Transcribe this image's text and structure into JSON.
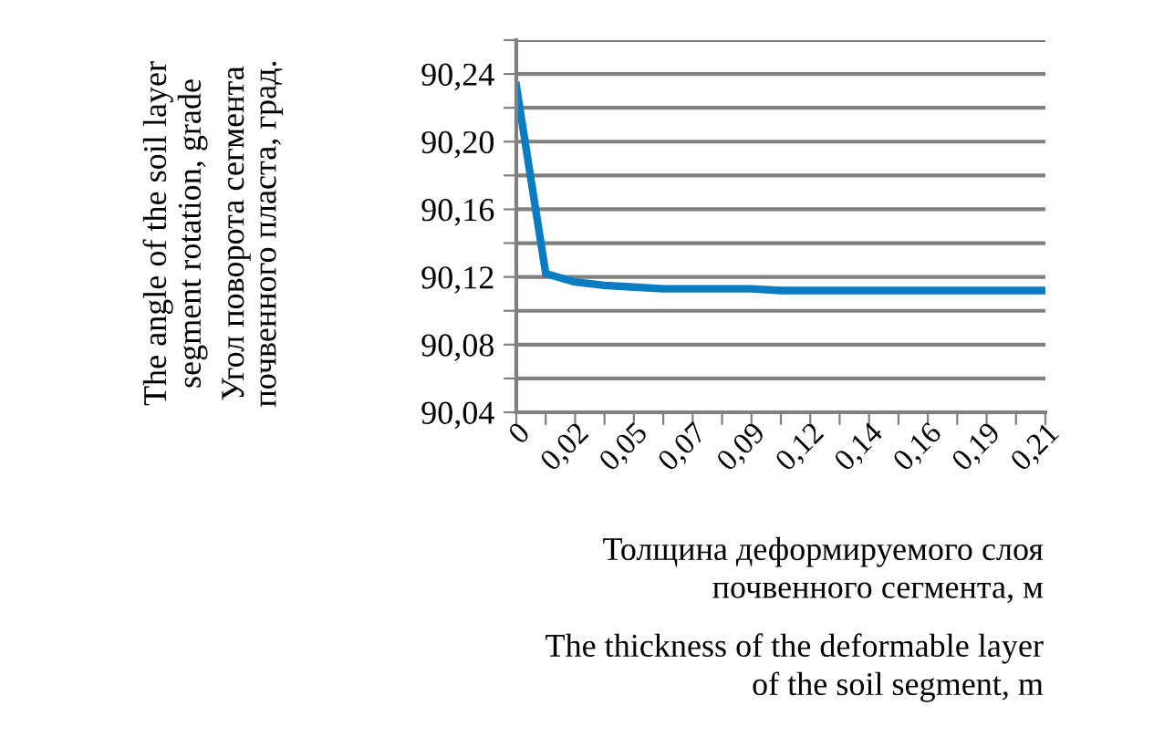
{
  "chart_data": {
    "type": "line",
    "ylabel": "Угол поворота сегмента\nпочвенного пласта, град.",
    "xlabel": "Толщина деформируемого слоя\nпочвенного сегмента, м",
    "annotations": [
      "The angle of the soil layer\nsegment rotation, grade",
      "The thickness of the deformable layer\nof the soil segment, m"
    ],
    "categories": [
      "0",
      null,
      "0,02",
      null,
      "0,05",
      null,
      "0,07",
      null,
      "0,09",
      null,
      "0,12",
      null,
      "0,14",
      null,
      "0,16",
      null,
      "0,19",
      null,
      "0,21"
    ],
    "series": [
      {
        "color": "#0a7cc1",
        "values": [
          90.233,
          90.122,
          90.117,
          90.115,
          90.114,
          90.113,
          90.113,
          90.113,
          90.113,
          90.112,
          90.112,
          90.112,
          90.112,
          90.112,
          90.112,
          90.112,
          90.112,
          90.112,
          90.112
        ]
      }
    ],
    "ylim": [
      90.04,
      90.26
    ],
    "yticks": [
      {
        "value": 90.04,
        "label": "90,04"
      },
      {
        "value": 90.06,
        "label": null
      },
      {
        "value": 90.08,
        "label": "90,08"
      },
      {
        "value": 90.1,
        "label": null
      },
      {
        "value": 90.12,
        "label": "90,12"
      },
      {
        "value": 90.14,
        "label": null
      },
      {
        "value": 90.16,
        "label": "90,16"
      },
      {
        "value": 90.18,
        "label": null
      },
      {
        "value": 90.2,
        "label": "90,20"
      },
      {
        "value": 90.22,
        "label": null
      },
      {
        "value": 90.24,
        "label": "90,24"
      },
      {
        "value": 90.26,
        "label": null
      }
    ],
    "grid": "y",
    "legend": false,
    "marker": "none",
    "line_style": "solid"
  }
}
